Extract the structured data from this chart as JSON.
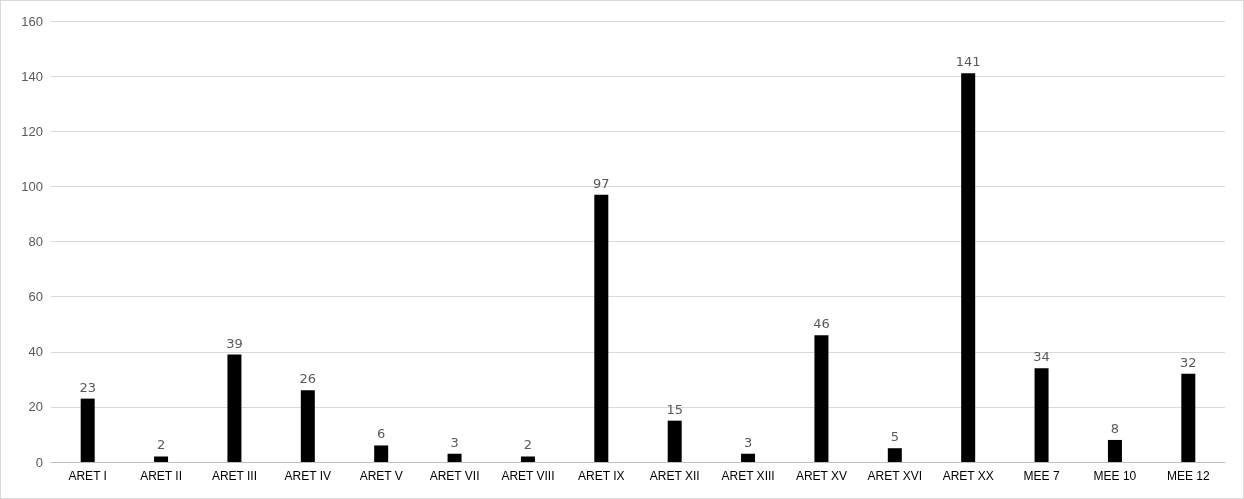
{
  "chart_data": {
    "type": "bar",
    "categories": [
      "ARET I",
      "ARET II",
      "ARET III",
      "ARET IV",
      "ARET V",
      "ARET VII",
      "ARET VIII",
      "ARET IX",
      "ARET XII",
      "ARET XIII",
      "ARET XV",
      "ARET XVI",
      "ARET XX",
      "MEE 7",
      "MEE 10",
      "MEE 12"
    ],
    "values": [
      23,
      2,
      39,
      26,
      6,
      3,
      2,
      97,
      15,
      3,
      46,
      5,
      141,
      34,
      8,
      32
    ],
    "color": "#000000",
    "ylim": [
      0,
      160
    ],
    "yticks": [
      0,
      20,
      40,
      60,
      80,
      100,
      120,
      140,
      160
    ],
    "grid": "y",
    "data_labels": true
  }
}
